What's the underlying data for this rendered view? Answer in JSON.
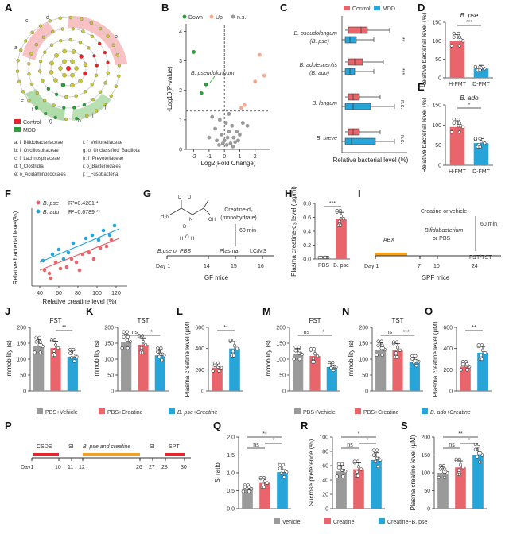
{
  "panel_letters": [
    "A",
    "B",
    "C",
    "D",
    "E",
    "F",
    "G",
    "H",
    "I",
    "J",
    "K",
    "L",
    "M",
    "N",
    "O",
    "P",
    "Q",
    "R",
    "S"
  ],
  "colors": {
    "control": "#e8656b",
    "mdd": "#27a4d8",
    "grey": "#9a9a9a",
    "green": "#2e9d3a",
    "orange": "#f0a025",
    "salmon": "#f5a98f"
  },
  "panel_a": {
    "legend": [
      {
        "label": "Control",
        "color": "#e8232b"
      },
      {
        "label": "MDD",
        "color": "#27a037"
      }
    ],
    "taxa": [
      "a: f_Bifidobacteriaceae",
      "b: f_Oscillospiraceae",
      "c: f_Lachnospiraceae",
      "d: f_Clostridia",
      "e: o_Acidaminococcales",
      "f: f_Veillonellaceae",
      "g: o_Unclassified_Bacillota",
      "h: f_Prevotellaceae",
      "i: o_Bacteroidales",
      "j: f_Fusobacteria"
    ],
    "ring_letters": [
      "a",
      "b",
      "c",
      "d",
      "e",
      "f",
      "g",
      "h",
      "i",
      "j"
    ]
  },
  "panel_b": {
    "legend": [
      "Down",
      "Up",
      "n.s."
    ],
    "ylabel": "-Log10(P-value)",
    "xlabel": "Log2(Fold Change)",
    "xticks": [
      "-2",
      "-1",
      "0",
      "1",
      "2"
    ],
    "yticks": [
      "0",
      "1",
      "2",
      "3",
      "4"
    ],
    "annotation": "B. pseudolongum",
    "chart_data": {
      "type": "scatter",
      "down": [
        [
          -2.0,
          3.3
        ],
        [
          -1.5,
          1.9
        ],
        [
          -1.2,
          2.2
        ]
      ],
      "up": [
        [
          2.3,
          3.2
        ],
        [
          2.0,
          2.3
        ],
        [
          2.6,
          2.5
        ],
        [
          1.3,
          1.5
        ],
        [
          1.1,
          1.4
        ]
      ],
      "ns": [
        [
          -0.3,
          1.0
        ],
        [
          0.1,
          0.9
        ],
        [
          0.5,
          0.8
        ],
        [
          -0.6,
          0.7
        ],
        [
          0.3,
          0.6
        ],
        [
          0.8,
          0.6
        ],
        [
          -0.2,
          0.5
        ],
        [
          0.2,
          0.4
        ],
        [
          0.6,
          0.4
        ],
        [
          -0.5,
          0.3
        ],
        [
          0.0,
          0.3
        ],
        [
          0.4,
          0.2
        ],
        [
          -0.1,
          0.2
        ],
        [
          0.7,
          0.25
        ],
        [
          1.0,
          0.5
        ],
        [
          1.5,
          0.8
        ],
        [
          -1.0,
          0.4
        ],
        [
          0.9,
          0.3
        ],
        [
          0.15,
          0.15
        ],
        [
          -0.35,
          0.15
        ],
        [
          0.55,
          0.1
        ],
        [
          1.2,
          0.9
        ],
        [
          -0.8,
          1.1
        ],
        [
          0.3,
          1.2
        ]
      ],
      "xlim": [
        -2.5,
        3
      ],
      "ylim": [
        0,
        4.2
      ],
      "threshold": 1.3
    }
  },
  "panel_c": {
    "legend": [
      "Control",
      "MDD"
    ],
    "xlabel": "Relative bacterial level (%)",
    "groups": [
      {
        "name": "B. pseudolongum",
        "sub": "(B. pse)",
        "sig": "**"
      },
      {
        "name": "B. adolescentis",
        "sub": "(B. ado)",
        "sig": "***"
      },
      {
        "name": "B. longum",
        "sub": "",
        "sig": "n.s."
      },
      {
        "name": "B. breve",
        "sub": "",
        "sig": "n.s."
      }
    ]
  },
  "panel_d": {
    "title": "B. pse",
    "ylabel": "Relative bacterial level (%)",
    "yticks": [
      "0",
      "50",
      "100",
      "150"
    ],
    "cats": [
      "H-FMT",
      "D-FMT"
    ],
    "values": [
      100,
      25
    ],
    "sig": "***"
  },
  "panel_e": {
    "title": "B. ado",
    "ylabel": "Relative bacterial level (%)",
    "yticks": [
      "0",
      "50",
      "100",
      "150"
    ],
    "cats": [
      "H-FMT",
      "D-FMT"
    ],
    "values": [
      95,
      55
    ],
    "sig": "*"
  },
  "panel_f": {
    "ylabel": "Relative bacterial level(%)",
    "xlabel": "Relative creatine level (%)",
    "xticks": [
      "40",
      "60",
      "80",
      "100",
      "120"
    ],
    "legend": [
      {
        "name": "B. pse",
        "stat": "R²=0.4281 *"
      },
      {
        "name": "B. ado",
        "stat": "R²=0.6789 **"
      }
    ]
  },
  "panel_g": {
    "labels": {
      "chem": "Creatine-d₃",
      "form": "(monohydrate)",
      "time": "60 min",
      "grp": "B.pse or PBS",
      "plasma": "Plasma",
      "lcms": "LC/MS",
      "day": "Day 1",
      "mice": "GF mice"
    },
    "days": [
      "14",
      "15",
      "16"
    ]
  },
  "panel_h": {
    "ylabel": "Plasma creatine-d₃ level (μg/ml)",
    "yticks": [
      "0.0",
      "0.2",
      "0.4",
      "0.6",
      "0.8"
    ],
    "cats": [
      "PBS",
      "B. pse"
    ],
    "values": [
      0.0,
      0.58
    ],
    "sig": "***"
  },
  "panel_i": {
    "labels": {
      "top": "Creatine or vehicle",
      "time": "60 min",
      "abx": "ABX",
      "bif": "Bifidobacterium",
      "pbs": "or PBS",
      "test": "FST/TST",
      "day": "Day 1",
      "mice": "SPF mice"
    },
    "days": [
      "7",
      "10",
      "24"
    ]
  },
  "row2": {
    "j": {
      "title": "FST",
      "ylabel": "Immobility (s)",
      "yticks": [
        "0",
        "50",
        "100",
        "150",
        "200"
      ],
      "values": [
        140,
        135,
        108
      ],
      "sig": [
        "**"
      ]
    },
    "k": {
      "title": "TST",
      "ylabel": "Immobility (s)",
      "yticks": [
        "0",
        "50",
        "100",
        "150",
        "200"
      ],
      "values": [
        155,
        145,
        112
      ],
      "sig": [
        "ns",
        "*"
      ]
    },
    "l": {
      "ylabel": "Plasma creatine level (μM)",
      "yticks": [
        "0",
        "200",
        "400",
        "600"
      ],
      "values": [
        220,
        400
      ],
      "sig": [
        "**"
      ]
    },
    "m": {
      "title": "FST",
      "ylabel": "Immobility (s)",
      "yticks": [
        "0",
        "50",
        "100",
        "150",
        "200"
      ],
      "values": [
        115,
        110,
        75
      ],
      "sig": [
        "ns",
        "*"
      ]
    },
    "n": {
      "title": "TST",
      "ylabel": "Immobility (s)",
      "yticks": [
        "0",
        "50",
        "100",
        "150",
        "200"
      ],
      "values": [
        130,
        128,
        92
      ],
      "sig": [
        "ns",
        "***"
      ]
    },
    "o": {
      "ylabel": "Plasma creatine level (μM)",
      "yticks": [
        "0",
        "200",
        "400",
        "600"
      ],
      "values": [
        230,
        360
      ],
      "sig": [
        "**"
      ]
    },
    "legend_left": [
      "PBS+Vehicle",
      "PBS+Creatine",
      "B. pse+Creatine"
    ],
    "legend_right": [
      "PBS+Vehicle",
      "PBS+Creatine",
      "B. ado+Creatine"
    ]
  },
  "panel_p": {
    "labels": {
      "csds": "CSDS",
      "si": "SI",
      "mid": "B. pse and creatine",
      "spt": "SPT",
      "day": "Day1"
    },
    "days": [
      "10",
      "11",
      "12",
      "26",
      "27",
      "28",
      "30"
    ]
  },
  "row3": {
    "q": {
      "ylabel": "SI ratio",
      "yticks": [
        "0.0",
        "0.5",
        "1.0",
        "1.5",
        "2.0"
      ],
      "values": [
        0.55,
        0.72,
        1.02
      ],
      "sig": [
        "ns",
        "*",
        "**"
      ]
    },
    "r": {
      "ylabel": "Sucrose preference (%)",
      "yticks": [
        "0",
        "20",
        "40",
        "60",
        "80",
        "100"
      ],
      "values": [
        52,
        55,
        68
      ],
      "sig": [
        "ns",
        "*",
        "*"
      ]
    },
    "s": {
      "ylabel": "Plasma creatine level (μM)",
      "yticks": [
        "0",
        "50",
        "100",
        "150",
        "200"
      ],
      "values": [
        100,
        115,
        150
      ],
      "sig": [
        "ns",
        "*",
        "**"
      ]
    },
    "legend": [
      "Vehicle",
      "Creatine",
      "Creatine+B. pse"
    ]
  }
}
